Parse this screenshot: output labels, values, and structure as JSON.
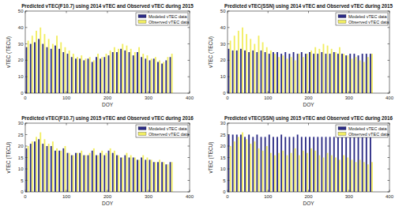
{
  "chart_data": [
    {
      "type": "bar",
      "title": "Predicted vTEC(F10.7) using 2014 vTEC and Observed vTEC during 2015",
      "x_label": "DOY",
      "y_label": "vTEC (TECU)",
      "x": [
        5,
        15,
        25,
        35,
        45,
        55,
        65,
        75,
        85,
        95,
        105,
        115,
        125,
        135,
        145,
        155,
        165,
        175,
        185,
        195,
        205,
        215,
        225,
        235,
        245,
        255,
        265,
        275,
        285,
        295,
        305,
        315,
        325,
        335,
        345,
        355
      ],
      "xlim": [
        0,
        400
      ],
      "xticks": [
        0,
        100,
        200,
        300,
        400
      ],
      "ylim": [
        0,
        50
      ],
      "yticks": [
        0,
        10,
        20,
        30,
        40,
        50
      ],
      "legend": "upper right",
      "grid": false,
      "series": [
        {
          "name": "Modeled vTEC data",
          "color": "#2a2a85",
          "values": [
            28,
            30,
            31,
            33,
            30,
            28,
            27,
            29,
            27,
            25,
            24,
            22,
            21,
            21,
            20,
            21,
            19,
            22,
            21,
            22,
            23,
            25,
            25,
            27,
            26,
            25,
            23,
            25,
            22,
            21,
            20,
            21,
            19,
            18,
            20,
            22
          ]
        },
        {
          "name": "Observed vTEC data",
          "color": "#f2ee62",
          "values": [
            32,
            35,
            38,
            40,
            36,
            33,
            30,
            35,
            31,
            28,
            26,
            24,
            22,
            23,
            21,
            22,
            20,
            24,
            22,
            24,
            26,
            28,
            27,
            30,
            29,
            27,
            25,
            28,
            24,
            23,
            21,
            22,
            20,
            19,
            22,
            24
          ]
        }
      ]
    },
    {
      "type": "bar",
      "title": "Predicted vTEC(SSN) using 2014 vTEC and Observed vTEC during 2015",
      "x_label": "DOY",
      "y_label": "vTEC (TECU)",
      "x": [
        5,
        15,
        25,
        35,
        45,
        55,
        65,
        75,
        85,
        95,
        105,
        115,
        125,
        135,
        145,
        155,
        165,
        175,
        185,
        195,
        205,
        215,
        225,
        235,
        245,
        255,
        265,
        275,
        285,
        295,
        305,
        315,
        325,
        335,
        345,
        355
      ],
      "xlim": [
        0,
        400
      ],
      "xticks": [
        0,
        100,
        200,
        300,
        400
      ],
      "ylim": [
        0,
        50
      ],
      "yticks": [
        0,
        10,
        20,
        30,
        40,
        50
      ],
      "legend": "upper right",
      "grid": false,
      "series": [
        {
          "name": "Modeled vTEC data",
          "color": "#2a2a85",
          "values": [
            27,
            26,
            26,
            27,
            26,
            25,
            26,
            25,
            26,
            25,
            24,
            25,
            25,
            24,
            25,
            24,
            25,
            24,
            25,
            24,
            25,
            24,
            24,
            25,
            24,
            24,
            25,
            24,
            24,
            23,
            24,
            24,
            23,
            24,
            24,
            24
          ]
        },
        {
          "name": "Observed vTEC data",
          "color": "#f2ee62",
          "values": [
            32,
            35,
            38,
            40,
            36,
            33,
            30,
            35,
            31,
            28,
            26,
            24,
            22,
            23,
            21,
            22,
            20,
            24,
            22,
            24,
            26,
            28,
            27,
            30,
            29,
            27,
            25,
            28,
            24,
            23,
            21,
            22,
            20,
            19,
            22,
            24
          ]
        }
      ]
    },
    {
      "type": "bar",
      "title": "Predicted vTEC(F10.7) using 2015 vTEC and Observed vTEC during 2016",
      "x_label": "DOY",
      "y_label": "vTEC (TECU)",
      "x": [
        5,
        15,
        25,
        35,
        45,
        55,
        65,
        75,
        85,
        95,
        105,
        115,
        125,
        135,
        145,
        155,
        165,
        175,
        185,
        195,
        205,
        215,
        225,
        235,
        245,
        255,
        265,
        275,
        285,
        295,
        305,
        315,
        325,
        335,
        345,
        355
      ],
      "xlim": [
        0,
        400
      ],
      "xticks": [
        0,
        100,
        200,
        300,
        400
      ],
      "ylim": [
        0,
        30
      ],
      "yticks": [
        0,
        5,
        10,
        15,
        20,
        25,
        30
      ],
      "legend": "upper right",
      "grid": false,
      "series": [
        {
          "name": "Modeled vTEC data",
          "color": "#2a2a85",
          "values": [
            19,
            21,
            22,
            23,
            21,
            20,
            20,
            18,
            18,
            19,
            17,
            16,
            17,
            17,
            16,
            16,
            18,
            16,
            17,
            16,
            18,
            17,
            16,
            15,
            16,
            15,
            15,
            14,
            15,
            14,
            14,
            13,
            13,
            13,
            12,
            13
          ]
        },
        {
          "name": "Observed vTEC data",
          "color": "#f2ee62",
          "values": [
            20,
            22,
            24,
            26,
            23,
            21,
            22,
            19,
            18,
            20,
            17,
            16,
            17,
            18,
            16,
            17,
            19,
            16,
            18,
            17,
            19,
            18,
            16,
            15,
            17,
            16,
            15,
            14,
            16,
            15,
            14,
            13,
            14,
            13,
            12,
            13
          ]
        }
      ]
    },
    {
      "type": "bar",
      "title": "Predicted vTEC(SSN) using 2015 vTEC and Observed vTEC during 2016",
      "x_label": "DOY",
      "y_label": "vTEC (TECU)",
      "x": [
        5,
        15,
        25,
        35,
        45,
        55,
        65,
        75,
        85,
        95,
        105,
        115,
        125,
        135,
        145,
        155,
        165,
        175,
        185,
        195,
        205,
        215,
        225,
        235,
        245,
        255,
        265,
        275,
        285,
        295,
        305,
        315,
        325,
        335,
        345,
        355
      ],
      "xlim": [
        0,
        400
      ],
      "xticks": [
        0,
        100,
        200,
        300,
        400
      ],
      "ylim": [
        0,
        30
      ],
      "yticks": [
        0,
        5,
        10,
        15,
        20,
        25,
        30
      ],
      "legend": "upper right",
      "grid": false,
      "series": [
        {
          "name": "Modeled vTEC data",
          "color": "#2a2a85",
          "values": [
            25,
            25,
            25,
            25,
            24,
            25,
            24,
            25,
            24,
            24,
            25,
            24,
            24,
            25,
            24,
            24,
            24,
            25,
            24,
            24,
            24,
            24,
            24,
            24,
            24,
            24,
            24,
            24,
            24,
            24,
            24,
            24,
            24,
            24,
            24,
            24
          ]
        },
        {
          "name": "Observed vTEC data",
          "color": "#f2ee62",
          "values": [
            20,
            22,
            24,
            26,
            23,
            21,
            22,
            19,
            18,
            20,
            17,
            16,
            17,
            18,
            16,
            17,
            19,
            16,
            18,
            17,
            19,
            18,
            16,
            15,
            17,
            16,
            15,
            14,
            16,
            15,
            14,
            13,
            14,
            13,
            12,
            13
          ]
        }
      ]
    }
  ]
}
